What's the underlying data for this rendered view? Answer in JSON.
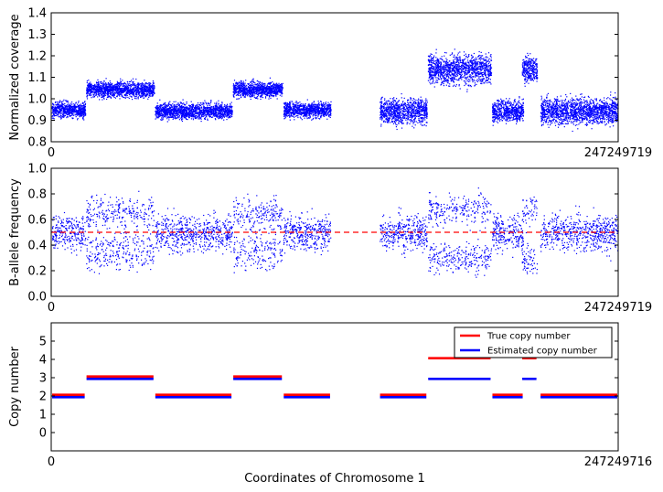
{
  "chart_data": [
    {
      "type": "scatter",
      "ylabel": "Normalized coverage",
      "ylim": [
        0.8,
        1.4
      ],
      "yticks": [
        "0.8",
        "0.9",
        "1.0",
        "1.1",
        "1.2",
        "1.3",
        "1.4"
      ],
      "xlim": [
        0,
        247249719
      ],
      "xtick_labels": [
        "0",
        "247249719"
      ],
      "color": "#0000ff",
      "segments": [
        {
          "x": [
            0,
            15000000
          ],
          "y": 0.95,
          "spread": 0.018
        },
        {
          "x": [
            15000000,
            45000000
          ],
          "y": 1.045,
          "spread": 0.018
        },
        {
          "x": [
            45000000,
            79000000
          ],
          "y": 0.945,
          "spread": 0.018
        },
        {
          "x": [
            79000000,
            101000000
          ],
          "y": 1.045,
          "spread": 0.018
        },
        {
          "x": [
            101000000,
            122000000
          ],
          "y": 0.95,
          "spread": 0.018
        },
        {
          "x": [
            143000000,
            164000000
          ],
          "y": 0.945,
          "spread": 0.03
        },
        {
          "x": [
            164000000,
            192000000
          ],
          "y": 1.14,
          "spread": 0.035
        },
        {
          "x": [
            192000000,
            206000000
          ],
          "y": 0.945,
          "spread": 0.025
        },
        {
          "x": [
            205000000,
            212000000
          ],
          "y": 1.14,
          "spread": 0.03
        },
        {
          "x": [
            213000000,
            247249719
          ],
          "y": 0.945,
          "spread": 0.03
        }
      ]
    },
    {
      "type": "scatter",
      "ylabel": "B-allele frequency",
      "ylim": [
        0.0,
        1.0
      ],
      "yticks": [
        "0.0",
        "0.2",
        "0.4",
        "0.6",
        "0.8",
        "1.0"
      ],
      "xlim": [
        0,
        247249719
      ],
      "xtick_labels": [
        "0",
        "247249719"
      ],
      "color": "#0000ff",
      "reference_line": {
        "y": 0.5,
        "color": "#ff0000",
        "style": "dashed"
      },
      "segments": [
        {
          "x": [
            0,
            15000000
          ],
          "centers": [
            0.5
          ],
          "spread": 0.07
        },
        {
          "x": [
            15000000,
            45000000
          ],
          "centers": [
            0.35,
            0.65
          ],
          "spread": 0.07
        },
        {
          "x": [
            45000000,
            79000000
          ],
          "centers": [
            0.5
          ],
          "spread": 0.07
        },
        {
          "x": [
            79000000,
            101000000
          ],
          "centers": [
            0.35,
            0.65
          ],
          "spread": 0.07
        },
        {
          "x": [
            101000000,
            122000000
          ],
          "centers": [
            0.5
          ],
          "spread": 0.07
        },
        {
          "x": [
            143000000,
            164000000
          ],
          "centers": [
            0.5
          ],
          "spread": 0.07
        },
        {
          "x": [
            164000000,
            192000000
          ],
          "centers": [
            0.3,
            0.68
          ],
          "spread": 0.06
        },
        {
          "x": [
            192000000,
            206000000
          ],
          "centers": [
            0.5
          ],
          "spread": 0.07
        },
        {
          "x": [
            205000000,
            212000000
          ],
          "centers": [
            0.3,
            0.68
          ],
          "spread": 0.06
        },
        {
          "x": [
            213000000,
            247249719
          ],
          "centers": [
            0.5
          ],
          "spread": 0.07
        }
      ]
    },
    {
      "type": "line",
      "xlabel": "Coordinates of Chromosome 1",
      "ylabel": "Copy number",
      "ylim": [
        -1,
        6
      ],
      "yticks": [
        "0",
        "1",
        "2",
        "3",
        "4",
        "5"
      ],
      "xlim": [
        0,
        247249716
      ],
      "xtick_labels": [
        "0",
        "247249716"
      ],
      "legend_position": "top-right",
      "series": [
        {
          "name": "True copy number",
          "color": "#ff0000",
          "segments": [
            [
              0,
              15000000,
              2
            ],
            [
              15000000,
              45000000,
              3
            ],
            [
              45000000,
              79000000,
              2
            ],
            [
              79000000,
              101000000,
              3
            ],
            [
              101000000,
              122000000,
              2
            ],
            [
              143000000,
              164000000,
              2
            ],
            [
              164000000,
              192000000,
              4
            ],
            [
              192000000,
              206000000,
              2
            ],
            [
              205000000,
              212000000,
              4
            ],
            [
              213000000,
              247249716,
              2
            ]
          ]
        },
        {
          "name": "Estimated copy number",
          "color": "#0000ff",
          "segments": [
            [
              0,
              15000000,
              2
            ],
            [
              15000000,
              45000000,
              3
            ],
            [
              45000000,
              79000000,
              2
            ],
            [
              79000000,
              101000000,
              3
            ],
            [
              101000000,
              122000000,
              2
            ],
            [
              143000000,
              164000000,
              2
            ],
            [
              164000000,
              192000000,
              3
            ],
            [
              192000000,
              206000000,
              2
            ],
            [
              205000000,
              212000000,
              3
            ],
            [
              213000000,
              247249716,
              2
            ]
          ]
        }
      ]
    }
  ]
}
